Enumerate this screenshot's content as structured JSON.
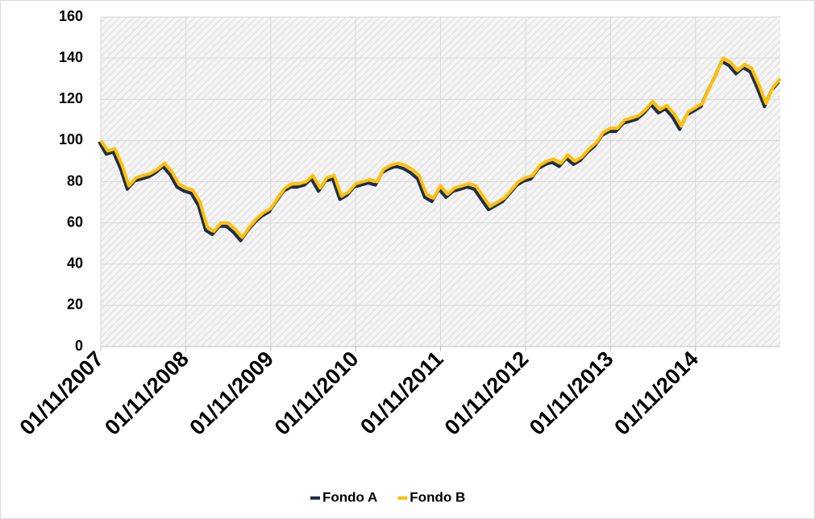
{
  "chart_data": {
    "type": "line",
    "x": [
      "01/11/2007",
      "01/12/2007",
      "01/01/2008",
      "01/02/2008",
      "01/03/2008",
      "01/04/2008",
      "01/05/2008",
      "01/06/2008",
      "01/07/2008",
      "01/08/2008",
      "01/09/2008",
      "01/10/2008",
      "01/11/2008",
      "01/12/2008",
      "01/01/2009",
      "01/02/2009",
      "01/03/2009",
      "01/04/2009",
      "01/05/2009",
      "01/06/2009",
      "01/07/2009",
      "01/08/2009",
      "01/09/2009",
      "01/10/2009",
      "01/11/2009",
      "01/12/2009",
      "01/01/2010",
      "01/02/2010",
      "01/03/2010",
      "01/04/2010",
      "01/05/2010",
      "01/06/2010",
      "01/07/2010",
      "01/08/2010",
      "01/09/2010",
      "01/10/2010",
      "01/11/2010",
      "01/12/2010",
      "01/01/2011",
      "01/02/2011",
      "01/03/2011",
      "01/04/2011",
      "01/05/2011",
      "01/06/2011",
      "01/07/2011",
      "01/08/2011",
      "01/09/2011",
      "01/10/2011",
      "01/11/2011",
      "01/12/2011",
      "01/01/2012",
      "01/02/2012",
      "01/03/2012",
      "01/04/2012",
      "01/05/2012",
      "01/06/2012",
      "01/07/2012",
      "01/08/2012",
      "01/09/2012",
      "01/10/2012",
      "01/11/2012",
      "01/12/2012",
      "01/01/2013",
      "01/02/2013",
      "01/03/2013",
      "01/04/2013",
      "01/05/2013",
      "01/06/2013",
      "01/07/2013",
      "01/08/2013",
      "01/09/2013",
      "01/10/2013",
      "01/11/2013",
      "01/12/2013",
      "01/01/2014",
      "01/02/2014",
      "01/03/2014",
      "01/04/2014",
      "01/05/2014",
      "01/06/2014",
      "01/07/2014",
      "01/08/2014",
      "01/09/2014",
      "01/10/2014",
      "01/11/2014",
      "01/12/2014",
      "01/01/2015",
      "01/02/2015",
      "01/03/2015",
      "01/04/2015",
      "01/05/2015",
      "01/06/2015",
      "01/07/2015",
      "01/08/2015",
      "01/09/2015",
      "01/10/2015",
      "01/11/2015"
    ],
    "series": [
      {
        "name": "Fondo A",
        "color": "#1f2d4d",
        "values": [
          100,
          94,
          95,
          87,
          77,
          81,
          82,
          83,
          85,
          88,
          84,
          78,
          76,
          75,
          69,
          57,
          55,
          59,
          59,
          56,
          52,
          57,
          61,
          64,
          66,
          71,
          76,
          78,
          78,
          79,
          82,
          76,
          81,
          82,
          72,
          74,
          78,
          79,
          80,
          79,
          85,
          87,
          88,
          87,
          85,
          82,
          73,
          71,
          77,
          73,
          76,
          77,
          78,
          77,
          72,
          67,
          69,
          71,
          75,
          79,
          81,
          82,
          87,
          89,
          90,
          88,
          92,
          89,
          91,
          95,
          98,
          103,
          105,
          105,
          109,
          110,
          111,
          114,
          118,
          114,
          116,
          112,
          106,
          113,
          115,
          117,
          125,
          132,
          139,
          137,
          133,
          136,
          134,
          126,
          117,
          125,
          129
        ]
      },
      {
        "name": "Fondo B",
        "color": "#ffc000",
        "values": [
          100,
          95,
          96,
          88,
          78,
          82,
          83,
          84,
          86,
          89,
          85,
          79,
          77,
          76,
          70,
          58,
          56,
          60,
          60,
          57,
          53,
          58,
          62,
          65,
          67,
          72,
          77,
          79,
          79,
          80,
          83,
          77,
          82,
          83,
          73,
          75,
          79,
          80,
          81,
          80,
          86,
          88,
          89,
          88,
          86,
          83,
          74,
          72,
          78,
          74,
          77,
          78,
          79,
          78,
          73,
          68,
          70,
          72,
          76,
          80,
          82,
          83,
          88,
          90,
          91,
          89,
          93,
          90,
          92,
          96,
          99,
          104,
          106,
          106,
          110,
          111,
          112,
          115,
          119,
          115,
          117,
          113,
          107,
          114,
          116,
          118,
          126,
          133,
          140,
          138,
          134,
          137,
          135,
          127,
          118,
          126,
          130
        ]
      }
    ],
    "xlim": [
      "01/11/2007",
      "01/11/2015"
    ],
    "xticks": [
      "01/11/2007",
      "01/11/2008",
      "01/11/2009",
      "01/11/2010",
      "01/11/2011",
      "01/11/2012",
      "01/11/2013",
      "01/11/2014"
    ],
    "ylim": [
      0,
      160
    ],
    "yticks": [
      0,
      20,
      40,
      60,
      80,
      100,
      120,
      140,
      160
    ],
    "grid": true,
    "legend": "bottom"
  }
}
